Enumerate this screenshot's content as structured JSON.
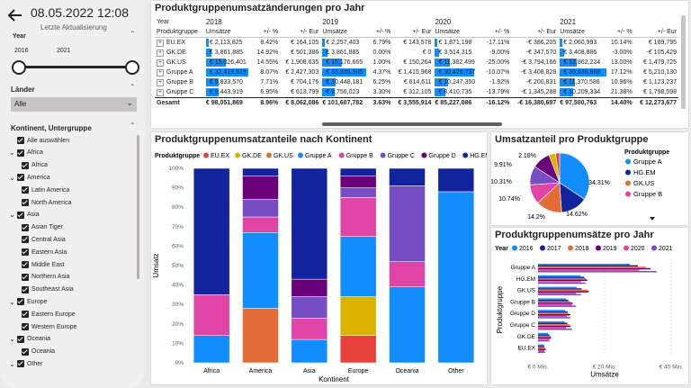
{
  "timestamp": "08.05.2022 12:08",
  "last_update_label": "Letzte Aktualisierung",
  "year_filter": {
    "label": "Year",
    "from": "2016",
    "to": "2021"
  },
  "laender": {
    "label": "Länder",
    "value": "Alle"
  },
  "region_filter": {
    "title": "Kontinent, Untergruppe",
    "items": [
      {
        "label": "Alle auswählen",
        "level": 0
      },
      {
        "label": "Africa",
        "level": 0
      },
      {
        "label": "Africa",
        "level": 1
      },
      {
        "label": "America",
        "level": 0
      },
      {
        "label": "Latin America",
        "level": 1
      },
      {
        "label": "North America",
        "level": 1
      },
      {
        "label": "Asia",
        "level": 0
      },
      {
        "label": "Asian Tiger",
        "level": 1
      },
      {
        "label": "Central Asia",
        "level": 1
      },
      {
        "label": "Eastern Asia",
        "level": 1
      },
      {
        "label": "Middle East",
        "level": 1
      },
      {
        "label": "Northern Asia",
        "level": 1
      },
      {
        "label": "Southeast Asia",
        "level": 1
      },
      {
        "label": "Europe",
        "level": 0
      },
      {
        "label": "Eastern Europe",
        "level": 1
      },
      {
        "label": "Western Europe",
        "level": 1
      },
      {
        "label": "Oceania",
        "level": 0
      },
      {
        "label": "Oceania",
        "level": 1
      },
      {
        "label": "Other",
        "level": 0
      }
    ]
  },
  "matrix": {
    "title": "Produktgruppenumsatzänderungen pro Jahr",
    "corner_top": "Year",
    "corner_bottom": "Produktgruppe",
    "years": [
      "2018",
      "2019",
      "2020",
      "2021"
    ],
    "sub": [
      "Umsätze",
      "+/- %",
      "+/- Eur"
    ],
    "rows": [
      {
        "name": "EU.EX",
        "cells": [
          [
            "€ 2,113,825",
            "8.42%",
            "€ 164,105"
          ],
          [
            "€ 2,257,403",
            "6.79%",
            "€ 143,578"
          ],
          [
            "€ 1,871,198",
            "-17.11%",
            "-€ 386,205"
          ],
          [
            "€ 2,060,993",
            "10.14%",
            "€ 189,795"
          ]
        ]
      },
      {
        "name": "GK.DE",
        "cells": [
          [
            "€ 3,861,885",
            "14.92%",
            "€ 501,386"
          ],
          [
            "€ 3,861,885",
            "0.00%",
            "€ 0"
          ],
          [
            "€ 3,514,315",
            "-9.00%",
            "-€ 347,570"
          ],
          [
            "€ 3,408,886",
            "-3.00%",
            "-€ 105,429"
          ]
        ]
      },
      {
        "name": "GK.US",
        "cells": [
          [
            "€ 15,026,401",
            "14.55%",
            "€ 1,908,635"
          ],
          [
            "€ 15,176,665",
            "1.00%",
            "€ 150,264"
          ],
          [
            "€ 11,382,499",
            "-25.00%",
            "-€ 3,794,166"
          ],
          [
            "€ 12,862,224",
            "13.00%",
            "€ 1,479,725"
          ]
        ]
      },
      {
        "name": "Gruppe A",
        "cells": [
          [
            "€ 32,419,519",
            "8.07%",
            "€ 2,427,303"
          ],
          [
            "€ 33,835,505",
            "4.37%",
            "€ 1,415,968"
          ],
          [
            "€ 30,426,737",
            "-10.07%",
            "-€ 3,408,828"
          ],
          [
            "€ 35,636,868",
            "17.12%",
            "€ 5,210,130"
          ]
        ]
      },
      {
        "name": "Gruppe B",
        "cells": [
          [
            "€ 9,833,570",
            "7.71%",
            "€ 704,176"
          ],
          [
            "€ 10,448,181",
            "6.25%",
            "€ 614,611"
          ],
          [
            "€ 10,247,350",
            "-1.92%",
            "-€ 200,831"
          ],
          [
            "€ 11,370,586",
            "10.96%",
            "€ 1,123,237"
          ]
        ]
      },
      {
        "name": "Gruppe C",
        "cells": [
          [
            "€ 9,443,919",
            "6.95%",
            "€ 613,799"
          ],
          [
            "€ 9,756,023",
            "3.30%",
            "€ 312,105"
          ],
          [
            "€ 8,410,735",
            "-13.79%",
            "-€ 1,345,288"
          ],
          [
            "€ 10,209,334",
            "21.38%",
            "€ 1,798,598"
          ]
        ]
      }
    ],
    "total": {
      "name": "Gesamt",
      "cells": [
        [
          "€ 98,051,869",
          "8.96%",
          "€ 8,062,086"
        ],
        [
          "€ 101,607,782",
          "3.63%",
          "€ 3,555,914"
        ],
        [
          "€ 85,227,086",
          "-16.12%",
          "-€ 16,380,697"
        ],
        [
          "€ 97,500,763",
          "14.40%",
          "€ 12,273,677"
        ]
      ]
    }
  },
  "colors": {
    "EU.EX": "#e8403a",
    "GK.DE": "#d9b300",
    "GK.US": "#e66c37",
    "Gruppe A": "#118dff",
    "Gruppe B": "#e044a7",
    "Gruppe C": "#744ec2",
    "Gruppe D": "#6b007b",
    "HG.EM": "#12239e"
  },
  "chart_data": [
    {
      "type": "bar",
      "title": "Produktgruppenumsatzanteile nach Kontinent",
      "xlabel": "Kontinent",
      "ylabel": "Umsatz",
      "legend_title": "Produktgruppe",
      "stacked_percent": true,
      "categories": [
        "Africa",
        "America",
        "Asia",
        "Europe",
        "Oceania",
        "Other"
      ],
      "yticks": [
        "0%",
        "10%",
        "20%",
        "30%",
        "40%",
        "50%",
        "60%",
        "70%",
        "80%",
        "90%",
        "100%"
      ],
      "series": [
        {
          "name": "EU.EX",
          "values": [
            0,
            0,
            0,
            14,
            0,
            0
          ]
        },
        {
          "name": "GK.DE",
          "values": [
            0,
            0,
            0,
            20,
            0,
            0
          ]
        },
        {
          "name": "GK.US",
          "values": [
            0,
            28,
            0,
            0,
            0,
            0
          ]
        },
        {
          "name": "Gruppe A",
          "values": [
            14,
            39,
            12,
            31,
            39,
            88
          ]
        },
        {
          "name": "Gruppe B",
          "values": [
            21,
            8,
            11,
            20,
            13,
            0
          ]
        },
        {
          "name": "Gruppe C",
          "values": [
            0,
            9,
            11,
            5,
            39,
            0
          ]
        },
        {
          "name": "Gruppe D",
          "values": [
            0,
            12,
            9,
            6,
            0,
            0
          ]
        },
        {
          "name": "HG.EM",
          "values": [
            65,
            4,
            57,
            4,
            9,
            12
          ]
        }
      ]
    },
    {
      "type": "pie",
      "title": "Umsatzanteil pro Produktgruppe",
      "legend_title": "Produktgruppe",
      "slices": [
        {
          "name": "Gruppe A",
          "value": 34.31
        },
        {
          "name": "HG.EM",
          "value": 14.62
        },
        {
          "name": "GK.US",
          "value": 14.2
        },
        {
          "name": "Gruppe B",
          "value": 10.74
        },
        {
          "name": "Gruppe C",
          "value": 10.31
        },
        {
          "name": "Gruppe D",
          "value": 9.91
        },
        {
          "name": "GK.DE",
          "value": 3.69
        },
        {
          "name": "EU.EX",
          "value": 2.18
        }
      ],
      "labels": [
        "34.31%",
        "14.62%",
        "14.2%",
        "10.74%",
        "10.31%",
        "9.91%",
        "2.18%"
      ],
      "legend": [
        "Gruppe A",
        "HG.EM",
        "GK.US",
        "Gruppe B"
      ]
    },
    {
      "type": "bar",
      "orientation": "horizontal",
      "title": "Produktgruppenumsätze pro Jahr",
      "legend_title": "Year",
      "xlabel": "Umsätze",
      "ylabel": "Produktgruppe",
      "xticks": [
        "€ 0 Mio.",
        "€ 20 Mio.",
        "€ 40 Mio."
      ],
      "xlim": [
        0,
        40
      ],
      "categories": [
        "Gruppe A",
        "HG.EM",
        "GK.US",
        "Gruppe B",
        "Gruppe D",
        "Gruppe C",
        "GK.DE",
        "EU.EX"
      ],
      "series": [
        {
          "name": "2016",
          "color": "#118dff",
          "values": [
            27.6,
            12.8,
            11.6,
            8.4,
            8.1,
            8.0,
            3.0,
            1.8
          ]
        },
        {
          "name": "2017",
          "color": "#12239e",
          "values": [
            30.0,
            13.9,
            13.1,
            9.1,
            8.9,
            8.8,
            3.4,
            1.9
          ]
        },
        {
          "name": "2018",
          "color": "#e66c37",
          "values": [
            32.4,
            14.4,
            15.0,
            9.8,
            9.3,
            9.4,
            3.9,
            2.1
          ]
        },
        {
          "name": "2019",
          "color": "#6b007b",
          "values": [
            33.8,
            14.8,
            15.2,
            10.4,
            9.7,
            9.8,
            3.9,
            2.3
          ]
        },
        {
          "name": "2020",
          "color": "#e044a7",
          "values": [
            30.4,
            12.9,
            11.4,
            10.2,
            8.6,
            8.4,
            3.5,
            1.9
          ]
        },
        {
          "name": "2021",
          "color": "#744ec2",
          "values": [
            35.6,
            14.3,
            12.9,
            11.4,
            9.7,
            10.2,
            3.4,
            2.1
          ]
        }
      ]
    }
  ]
}
